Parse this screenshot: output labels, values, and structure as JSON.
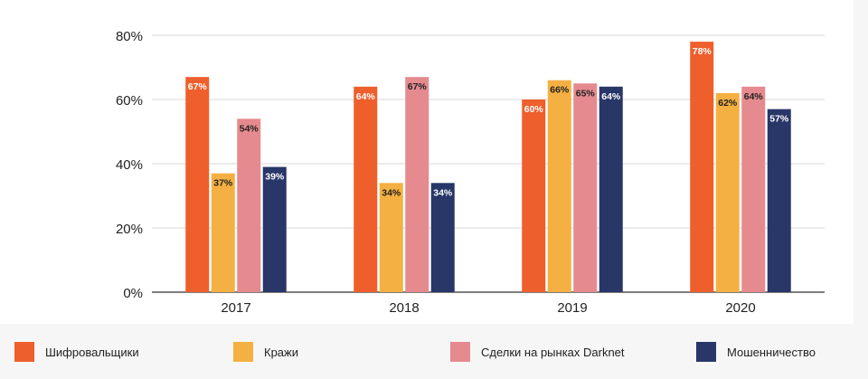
{
  "colors": {
    "ransomware": "#ee5f2c",
    "theft": "#f4b042",
    "darknet": "#e58a8e",
    "fraud": "#283668",
    "grid": "#d9d9d9",
    "axis": "#333333",
    "text": "#222222"
  },
  "chart_data": {
    "type": "bar",
    "categories": [
      "2017",
      "2018",
      "2019",
      "2020"
    ],
    "series": [
      {
        "name": "Шифровальщики",
        "key": "ransomware",
        "values": [
          67,
          64,
          60,
          78
        ],
        "labels": [
          "67%",
          "64%",
          "60%",
          "78%"
        ]
      },
      {
        "name": "Кражи",
        "key": "theft",
        "values": [
          37,
          34,
          66,
          62
        ],
        "labels": [
          "37%",
          "34%",
          "66%",
          "62%"
        ]
      },
      {
        "name": "Сделки на рынках Darknet",
        "key": "darknet",
        "values": [
          54,
          67,
          65,
          64
        ],
        "labels": [
          "54%",
          "67%",
          "65%",
          "64%"
        ]
      },
      {
        "name": "Мошенничество",
        "key": "fraud",
        "values": [
          39,
          34,
          64,
          57
        ],
        "labels": [
          "39%",
          "34%",
          "64%",
          "57%"
        ]
      }
    ],
    "ylim": [
      0,
      80
    ],
    "yticks": [
      0,
      20,
      40,
      60,
      80
    ],
    "ytick_labels": [
      "0%",
      "20%",
      "40%",
      "60%",
      "80%"
    ],
    "grid": true,
    "legend_position": "bottom"
  },
  "legend": {
    "items": [
      {
        "label": "Шифровальщики",
        "key": "ransomware"
      },
      {
        "label": "Кражи",
        "key": "theft"
      },
      {
        "label": "Сделки на рынках Darknet",
        "key": "darknet"
      },
      {
        "label": "Мошенничество",
        "key": "fraud"
      }
    ]
  }
}
